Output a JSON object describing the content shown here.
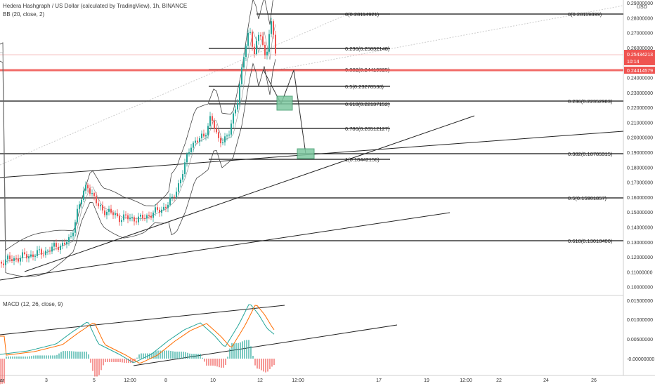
{
  "header": {
    "title": "Hedera Hashgraph / US Dollar (calculated by TradingView), 1h, BINANCE",
    "bb_label": "BB (20, close, 2)",
    "macd_label": "MACD (12, 26, close, 9)",
    "currency": "USD"
  },
  "price_tags": {
    "current_price": "0.25434213",
    "countdown": "10:14",
    "line_price": "0.24414579"
  },
  "fib_upper": [
    {
      "text": "0(0.28114921)"
    },
    {
      "text": "0.236(0.25832148)"
    },
    {
      "text": "0.382(0.24419925)"
    },
    {
      "text": "0.5(0.23278538)"
    },
    {
      "text": "0.618(0.22137152)"
    },
    {
      "text": "0.786(0.20512127)"
    },
    {
      "text": "1(0.18442156)"
    }
  ],
  "fib_lower": [
    {
      "text": "0(0.28119899)"
    },
    {
      "text": "0.236(0.22352983)"
    },
    {
      "text": "0.382(0.18785315)"
    },
    {
      "text": "0.5(0.15901857)"
    },
    {
      "text": "0.618(0.13018400)"
    }
  ],
  "price_axis": [
    "0.29000000",
    "0.28000000",
    "0.27000000",
    "0.26000000",
    "0.25000000",
    "0.24000000",
    "0.23000000",
    "0.22000000",
    "0.21000000",
    "0.20000000",
    "0.19000000",
    "0.18000000",
    "0.17000000",
    "0.16000000",
    "0.15000000",
    "0.14000000",
    "0.13000000",
    "0.12000000",
    "0.11000000",
    "0.10000000"
  ],
  "macd_axis": [
    "0.01500000",
    "0.01000000",
    "0.00500000",
    "-0.00000000"
  ],
  "time_axis": [
    "ar",
    "3",
    "5",
    "12:00",
    "8",
    "10",
    "12",
    "12:00",
    "17",
    "19",
    "12:00",
    "22",
    "24",
    "26"
  ],
  "colors": {
    "up_candle": "#26a69a",
    "down_candle": "#ef5350",
    "current_price_tag": "#ef5350",
    "level_line": "#ef5350",
    "macd_line": "#26a69a",
    "signal_line": "#ff6d00",
    "target_box": "#7ec8a0"
  }
}
